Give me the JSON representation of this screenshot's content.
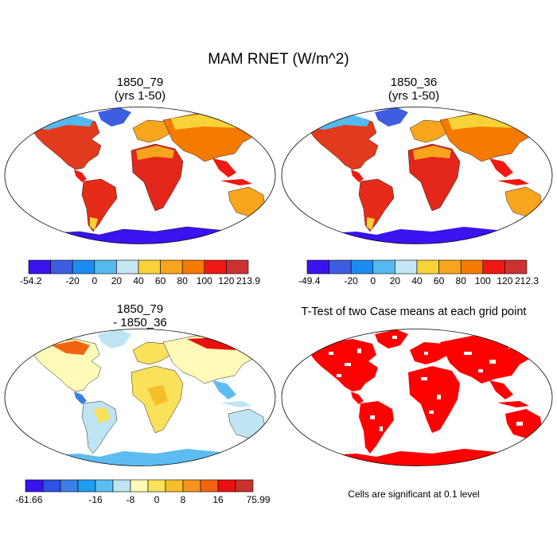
{
  "title": "MAM RNET (W/m^2)",
  "panels": [
    {
      "title_line1": "1850_79",
      "title_line2": "(yrs 1-50)"
    },
    {
      "title_line1": "1850_36",
      "title_line2": "(yrs 1-50)"
    },
    {
      "title_line1": "1850_79",
      "title_line2": "- 1850_36"
    },
    {
      "title_line1": "T-Test of two Case means at each grid point",
      "title_line2": ""
    }
  ],
  "footnote": "Cells are significant at 0.1 level",
  "colorbars": [
    {
      "colors": [
        "#3b13f0",
        "#3d5ee0",
        "#1b8cf0",
        "#54b9ee",
        "#c4e6f4",
        "#f8d337",
        "#f8a51e",
        "#f47a00",
        "#f01812",
        "#cd3232"
      ],
      "labels": [
        "-54.2",
        "-20",
        "0",
        "20",
        "40",
        "60",
        "80",
        "100",
        "120",
        "213.9"
      ]
    },
    {
      "colors": [
        "#3b13f0",
        "#3d5ee0",
        "#1b8cf0",
        "#54b9ee",
        "#c4e6f4",
        "#f8d337",
        "#f8a51e",
        "#f47a00",
        "#f01812",
        "#cd3232"
      ],
      "labels": [
        "-49.4",
        "-20",
        "0",
        "20",
        "40",
        "60",
        "80",
        "100",
        "120",
        "212.3"
      ]
    },
    {
      "colors": [
        "#3a14ef",
        "#2d52e6",
        "#3b7ee5",
        "#1f9ef0",
        "#5ebdf0",
        "#bfe4f3",
        "#fffab8",
        "#f9e15a",
        "#f8be2a",
        "#f7931c",
        "#f36410",
        "#ea1010",
        "#c8302c"
      ],
      "labels": [
        "-61.66",
        "-16",
        "-8",
        "0",
        "8",
        "16",
        "75.99"
      ]
    }
  ]
}
